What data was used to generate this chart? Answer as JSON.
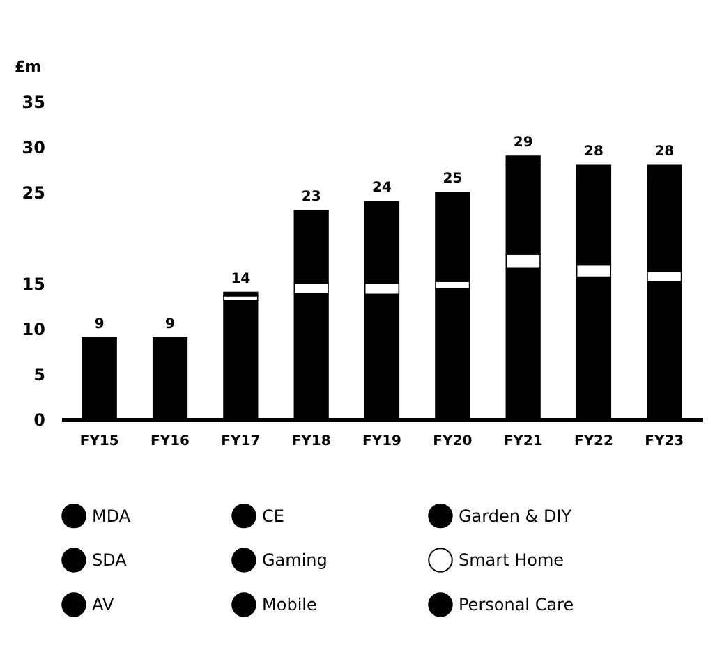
{
  "chart_data": {
    "type": "bar",
    "stacked": true,
    "ylabel": "£m",
    "categories": [
      "FY15",
      "FY16",
      "FY17",
      "FY18",
      "FY19",
      "FY20",
      "FY21",
      "FY22",
      "FY23"
    ],
    "series": [
      {
        "name": "MDA",
        "color": "#000000",
        "values": [
          9,
          9,
          13.1,
          13.9,
          13.8,
          14.4,
          16.7,
          15.7,
          15.2
        ]
      },
      {
        "name": "CE",
        "color": "#000000",
        "values": [
          null,
          null,
          null,
          null,
          null,
          null,
          null,
          null,
          null
        ]
      },
      {
        "name": "Garden & DIY",
        "color": "#000000",
        "values": [
          null,
          null,
          null,
          null,
          null,
          null,
          null,
          null,
          null
        ]
      },
      {
        "name": "SDA",
        "color": "#000000",
        "values": [
          null,
          null,
          null,
          null,
          null,
          null,
          null,
          null,
          null
        ]
      },
      {
        "name": "Gaming",
        "color": "#000000",
        "values": [
          null,
          null,
          null,
          null,
          null,
          null,
          null,
          null,
          null
        ]
      },
      {
        "name": "Smart Home",
        "color": "#ffffff",
        "values": [
          null,
          null,
          0.5,
          1.1,
          1.2,
          0.8,
          1.5,
          1.3,
          1.1
        ]
      },
      {
        "name": "AV",
        "color": "#000000",
        "values": [
          null,
          null,
          null,
          8.0,
          9.0,
          9.8,
          9.8,
          10.2,
          10.8
        ]
      },
      {
        "name": "Mobile",
        "color": "#000000",
        "values": [
          null,
          null,
          null,
          null,
          null,
          null,
          null,
          null,
          null
        ]
      },
      {
        "name": "Personal Care",
        "color": "#000000",
        "values": [
          null,
          null,
          0.4,
          null,
          null,
          null,
          1.0,
          0.8,
          0.9
        ]
      }
    ],
    "totals": [
      "9",
      "9",
      "14",
      "23",
      "24",
      "25",
      "29",
      "28",
      "28"
    ],
    "ylim": [
      0,
      35
    ],
    "yticks": [
      0,
      5,
      10,
      15,
      25,
      30,
      35
    ],
    "grid": false,
    "legend": "bottom"
  }
}
